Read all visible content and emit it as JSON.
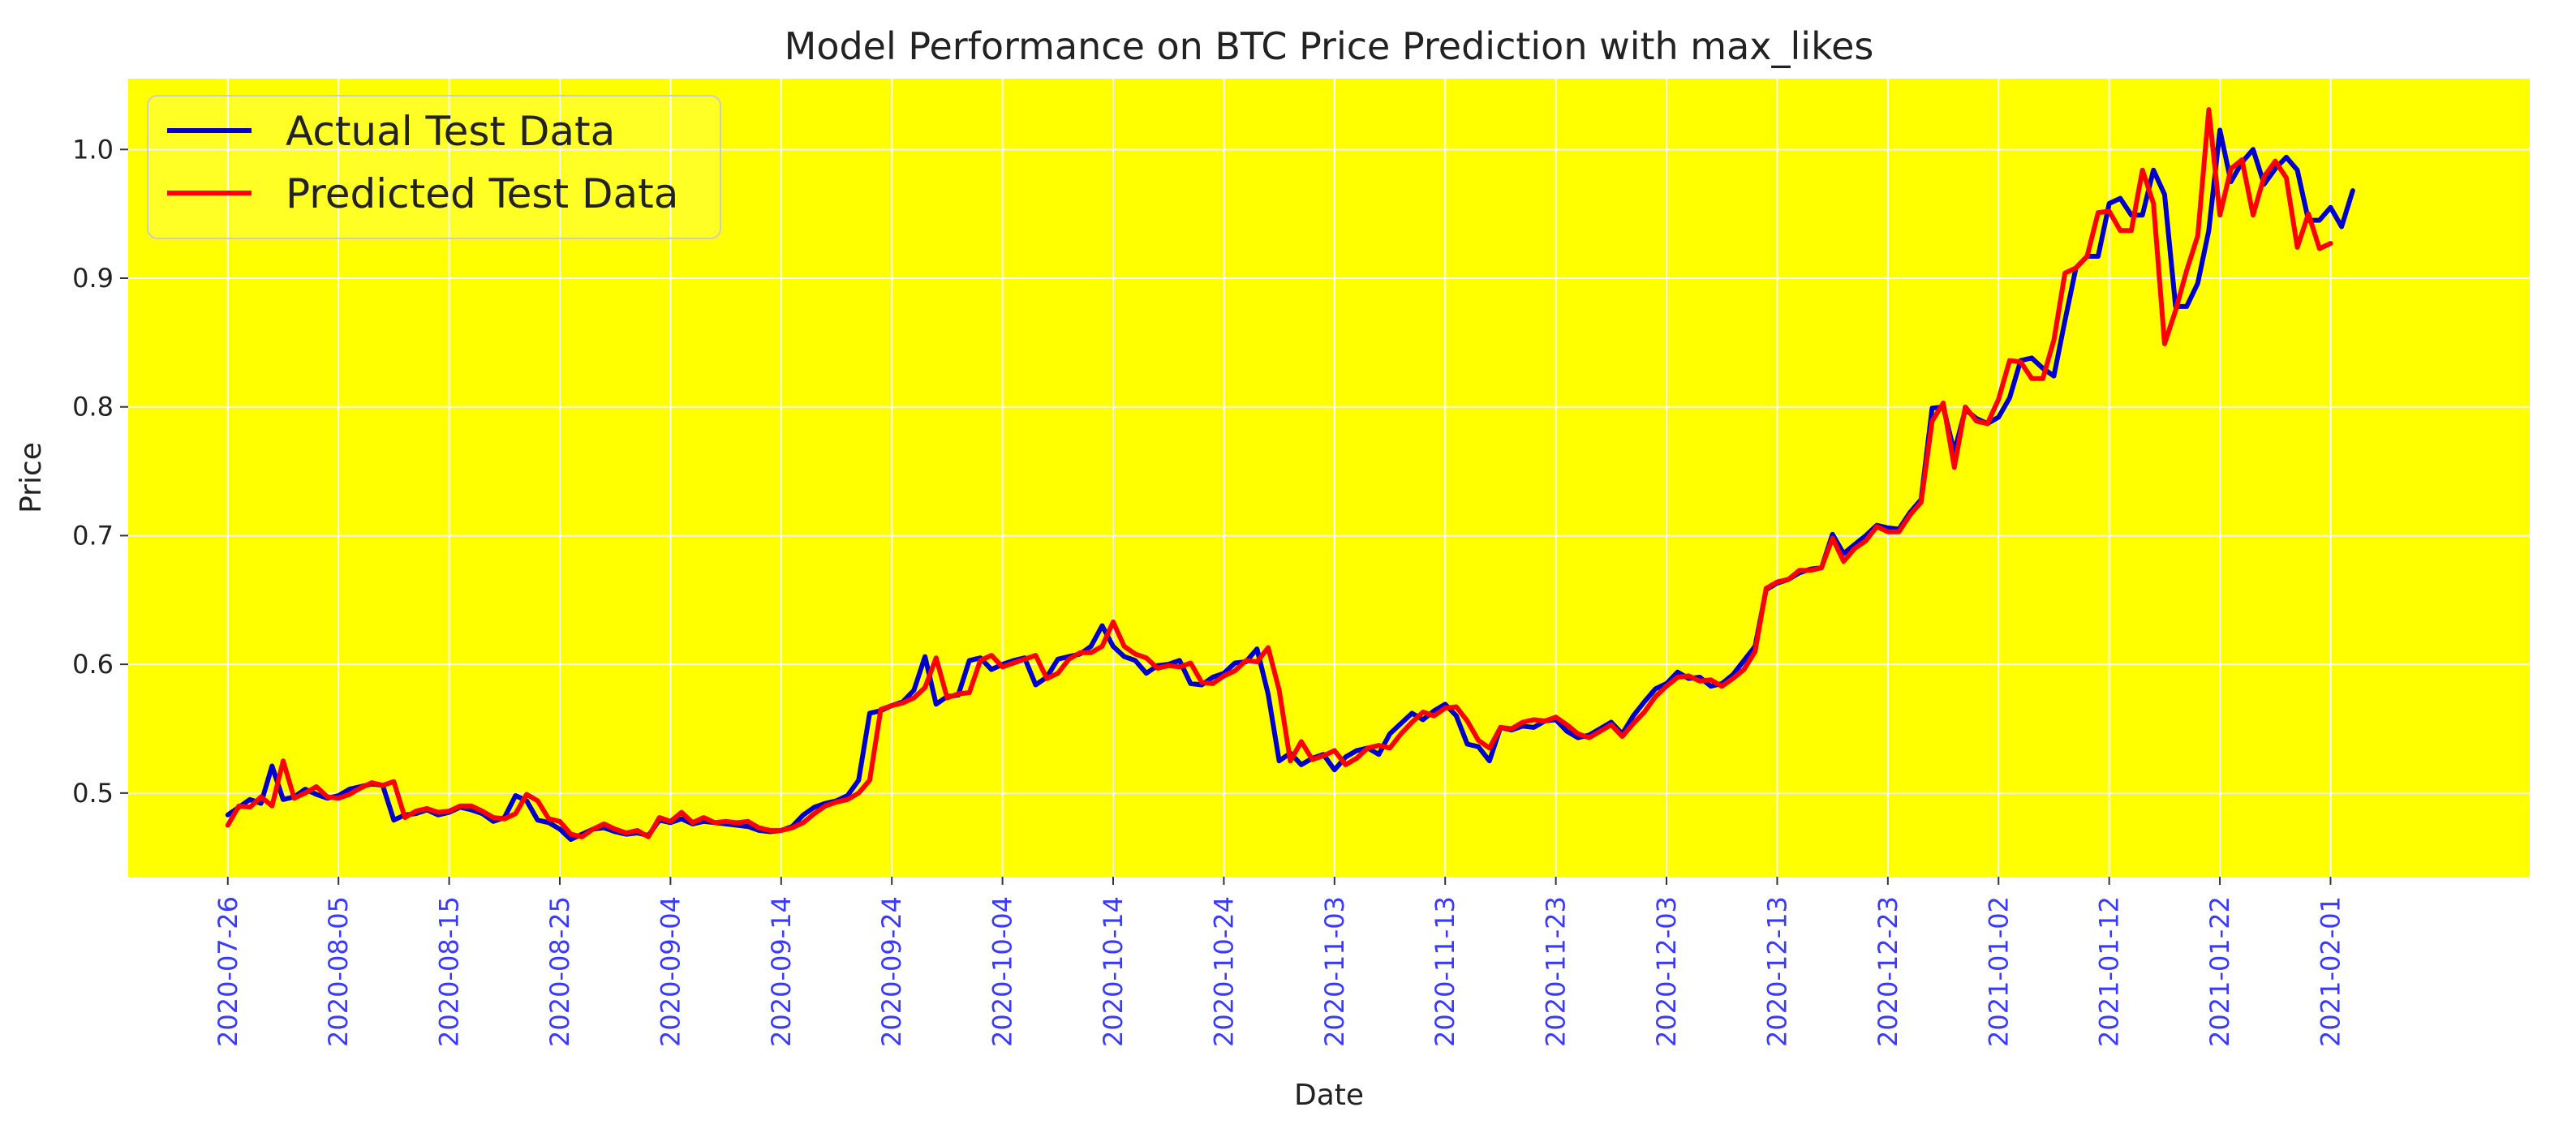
{
  "chart_data": {
    "type": "line",
    "title": "Model Performance on BTC Price Prediction with max_likes",
    "xlabel": "Date",
    "ylabel": "Price",
    "x_range": [
      "2020-07-17",
      "2021-02-19"
    ],
    "ylim": [
      0.435,
      1.055
    ],
    "yticks": [
      0.5,
      0.6,
      0.7,
      0.8,
      0.9,
      1.0
    ],
    "ytick_labels": [
      "0.5",
      "0.6",
      "0.7",
      "0.8",
      "0.9",
      "1.0"
    ],
    "xticks": [
      "2020-07-26",
      "2020-08-05",
      "2020-08-15",
      "2020-08-25",
      "2020-09-04",
      "2020-09-14",
      "2020-09-24",
      "2020-10-04",
      "2020-10-14",
      "2020-10-24",
      "2020-11-03",
      "2020-11-13",
      "2020-11-23",
      "2020-12-03",
      "2020-12-13",
      "2020-12-23",
      "2021-01-02",
      "2021-01-12",
      "2021-01-22",
      "2021-02-01"
    ],
    "grid": true,
    "legend_position": "top-left",
    "colors": {
      "plot_background": "#ffff00",
      "grid": "#ffffff",
      "tick_label_x": "#3a3aff",
      "actual": "#0000cc",
      "predicted": "#ff0000"
    },
    "series": [
      {
        "name": "Actual Test Data",
        "color": "#0000cc",
        "start_date": "2020-07-26",
        "values": [
          0.483,
          0.489,
          0.495,
          0.492,
          0.521,
          0.495,
          0.497,
          0.503,
          0.499,
          0.496,
          0.498,
          0.503,
          0.505,
          0.507,
          0.506,
          0.479,
          0.483,
          0.484,
          0.487,
          0.483,
          0.485,
          0.489,
          0.487,
          0.484,
          0.478,
          0.481,
          0.498,
          0.494,
          0.479,
          0.477,
          0.472,
          0.464,
          0.468,
          0.472,
          0.473,
          0.47,
          0.468,
          0.469,
          0.467,
          0.479,
          0.477,
          0.48,
          0.476,
          0.478,
          0.477,
          0.476,
          0.475,
          0.474,
          0.471,
          0.47,
          0.471,
          0.474,
          0.483,
          0.489,
          0.492,
          0.494,
          0.498,
          0.51,
          0.562,
          0.564,
          0.568,
          0.571,
          0.58,
          0.606,
          0.569,
          0.575,
          0.576,
          0.603,
          0.605,
          0.596,
          0.6,
          0.603,
          0.605,
          0.584,
          0.59,
          0.604,
          0.606,
          0.608,
          0.614,
          0.63,
          0.614,
          0.606,
          0.603,
          0.593,
          0.599,
          0.6,
          0.603,
          0.585,
          0.584,
          0.59,
          0.593,
          0.601,
          0.602,
          0.612,
          0.577,
          0.525,
          0.531,
          0.522,
          0.527,
          0.53,
          0.518,
          0.528,
          0.533,
          0.535,
          0.53,
          0.546,
          0.554,
          0.562,
          0.557,
          0.564,
          0.569,
          0.56,
          0.538,
          0.536,
          0.525,
          0.551,
          0.549,
          0.552,
          0.551,
          0.556,
          0.557,
          0.548,
          0.543,
          0.545,
          0.55,
          0.555,
          0.546,
          0.56,
          0.571,
          0.581,
          0.585,
          0.594,
          0.589,
          0.59,
          0.583,
          0.585,
          0.592,
          0.603,
          0.614,
          0.658,
          0.663,
          0.666,
          0.671,
          0.674,
          0.675,
          0.701,
          0.686,
          0.693,
          0.7,
          0.708,
          0.706,
          0.705,
          0.718,
          0.728,
          0.799,
          0.8,
          0.765,
          0.798,
          0.791,
          0.787,
          0.792,
          0.807,
          0.836,
          0.838,
          0.83,
          0.824,
          0.867,
          0.908,
          0.917,
          0.917,
          0.958,
          0.962,
          0.949,
          0.949,
          0.984,
          0.965,
          0.878,
          0.878,
          0.896,
          0.937,
          1.015,
          0.975,
          0.99,
          1.0,
          0.973,
          0.985,
          0.994,
          0.984,
          0.945,
          0.945,
          0.955,
          0.94,
          0.968
        ]
      },
      {
        "name": "Predicted Test Data",
        "color": "#ff0000",
        "start_date": "2020-07-26",
        "values": [
          0.475,
          0.49,
          0.489,
          0.497,
          0.49,
          0.525,
          0.496,
          0.5,
          0.505,
          0.497,
          0.496,
          0.499,
          0.504,
          0.508,
          0.506,
          0.509,
          0.481,
          0.486,
          0.488,
          0.485,
          0.486,
          0.49,
          0.49,
          0.486,
          0.481,
          0.48,
          0.484,
          0.499,
          0.494,
          0.48,
          0.478,
          0.468,
          0.466,
          0.472,
          0.476,
          0.472,
          0.469,
          0.471,
          0.466,
          0.481,
          0.478,
          0.485,
          0.477,
          0.481,
          0.477,
          0.478,
          0.477,
          0.478,
          0.473,
          0.471,
          0.471,
          0.473,
          0.477,
          0.484,
          0.49,
          0.493,
          0.495,
          0.5,
          0.51,
          0.565,
          0.568,
          0.57,
          0.574,
          0.582,
          0.605,
          0.574,
          0.577,
          0.578,
          0.603,
          0.607,
          0.598,
          0.601,
          0.604,
          0.607,
          0.589,
          0.593,
          0.604,
          0.609,
          0.609,
          0.614,
          0.633,
          0.614,
          0.608,
          0.605,
          0.597,
          0.599,
          0.598,
          0.601,
          0.586,
          0.585,
          0.591,
          0.595,
          0.603,
          0.602,
          0.613,
          0.58,
          0.525,
          0.54,
          0.526,
          0.529,
          0.533,
          0.522,
          0.527,
          0.535,
          0.537,
          0.535,
          0.546,
          0.555,
          0.563,
          0.56,
          0.566,
          0.567,
          0.556,
          0.541,
          0.535,
          0.551,
          0.55,
          0.555,
          0.557,
          0.556,
          0.559,
          0.553,
          0.546,
          0.543,
          0.548,
          0.553,
          0.544,
          0.554,
          0.563,
          0.575,
          0.583,
          0.59,
          0.591,
          0.587,
          0.588,
          0.583,
          0.589,
          0.596,
          0.61,
          0.659,
          0.664,
          0.666,
          0.673,
          0.673,
          0.675,
          0.698,
          0.68,
          0.69,
          0.696,
          0.707,
          0.703,
          0.703,
          0.716,
          0.726,
          0.789,
          0.803,
          0.753,
          0.8,
          0.789,
          0.787,
          0.806,
          0.836,
          0.835,
          0.822,
          0.822,
          0.852,
          0.904,
          0.908,
          0.917,
          0.951,
          0.952,
          0.937,
          0.937,
          0.984,
          0.958,
          0.849,
          0.875,
          0.906,
          0.933,
          1.031,
          0.949,
          0.985,
          0.992,
          0.949,
          0.979,
          0.991,
          0.978,
          0.924,
          0.95,
          0.923,
          0.927
        ]
      }
    ]
  }
}
